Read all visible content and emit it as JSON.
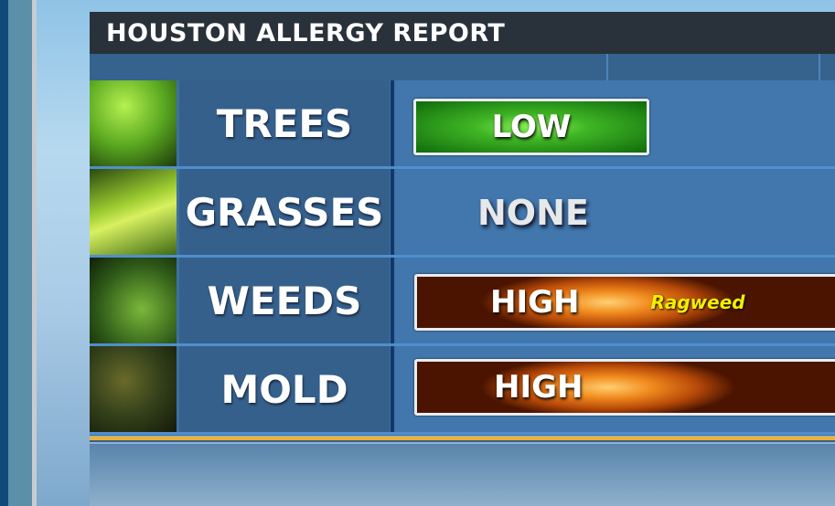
{
  "title": "HOUSTON ALLERGY REPORT",
  "rows": [
    {
      "category": "TREES",
      "level": "LOW",
      "color": "#3fb524"
    },
    {
      "category": "GRASSES",
      "level": "NONE"
    },
    {
      "category": "WEEDS",
      "level": "HIGH",
      "note": "Ragweed",
      "color": "#f08a1e"
    },
    {
      "category": "MOLD",
      "level": "HIGH",
      "color": "#f08a1e"
    }
  ],
  "colors": {
    "accent_line": "#f0b030",
    "title_bg": "#29323a",
    "panel": "#3d70a2"
  }
}
